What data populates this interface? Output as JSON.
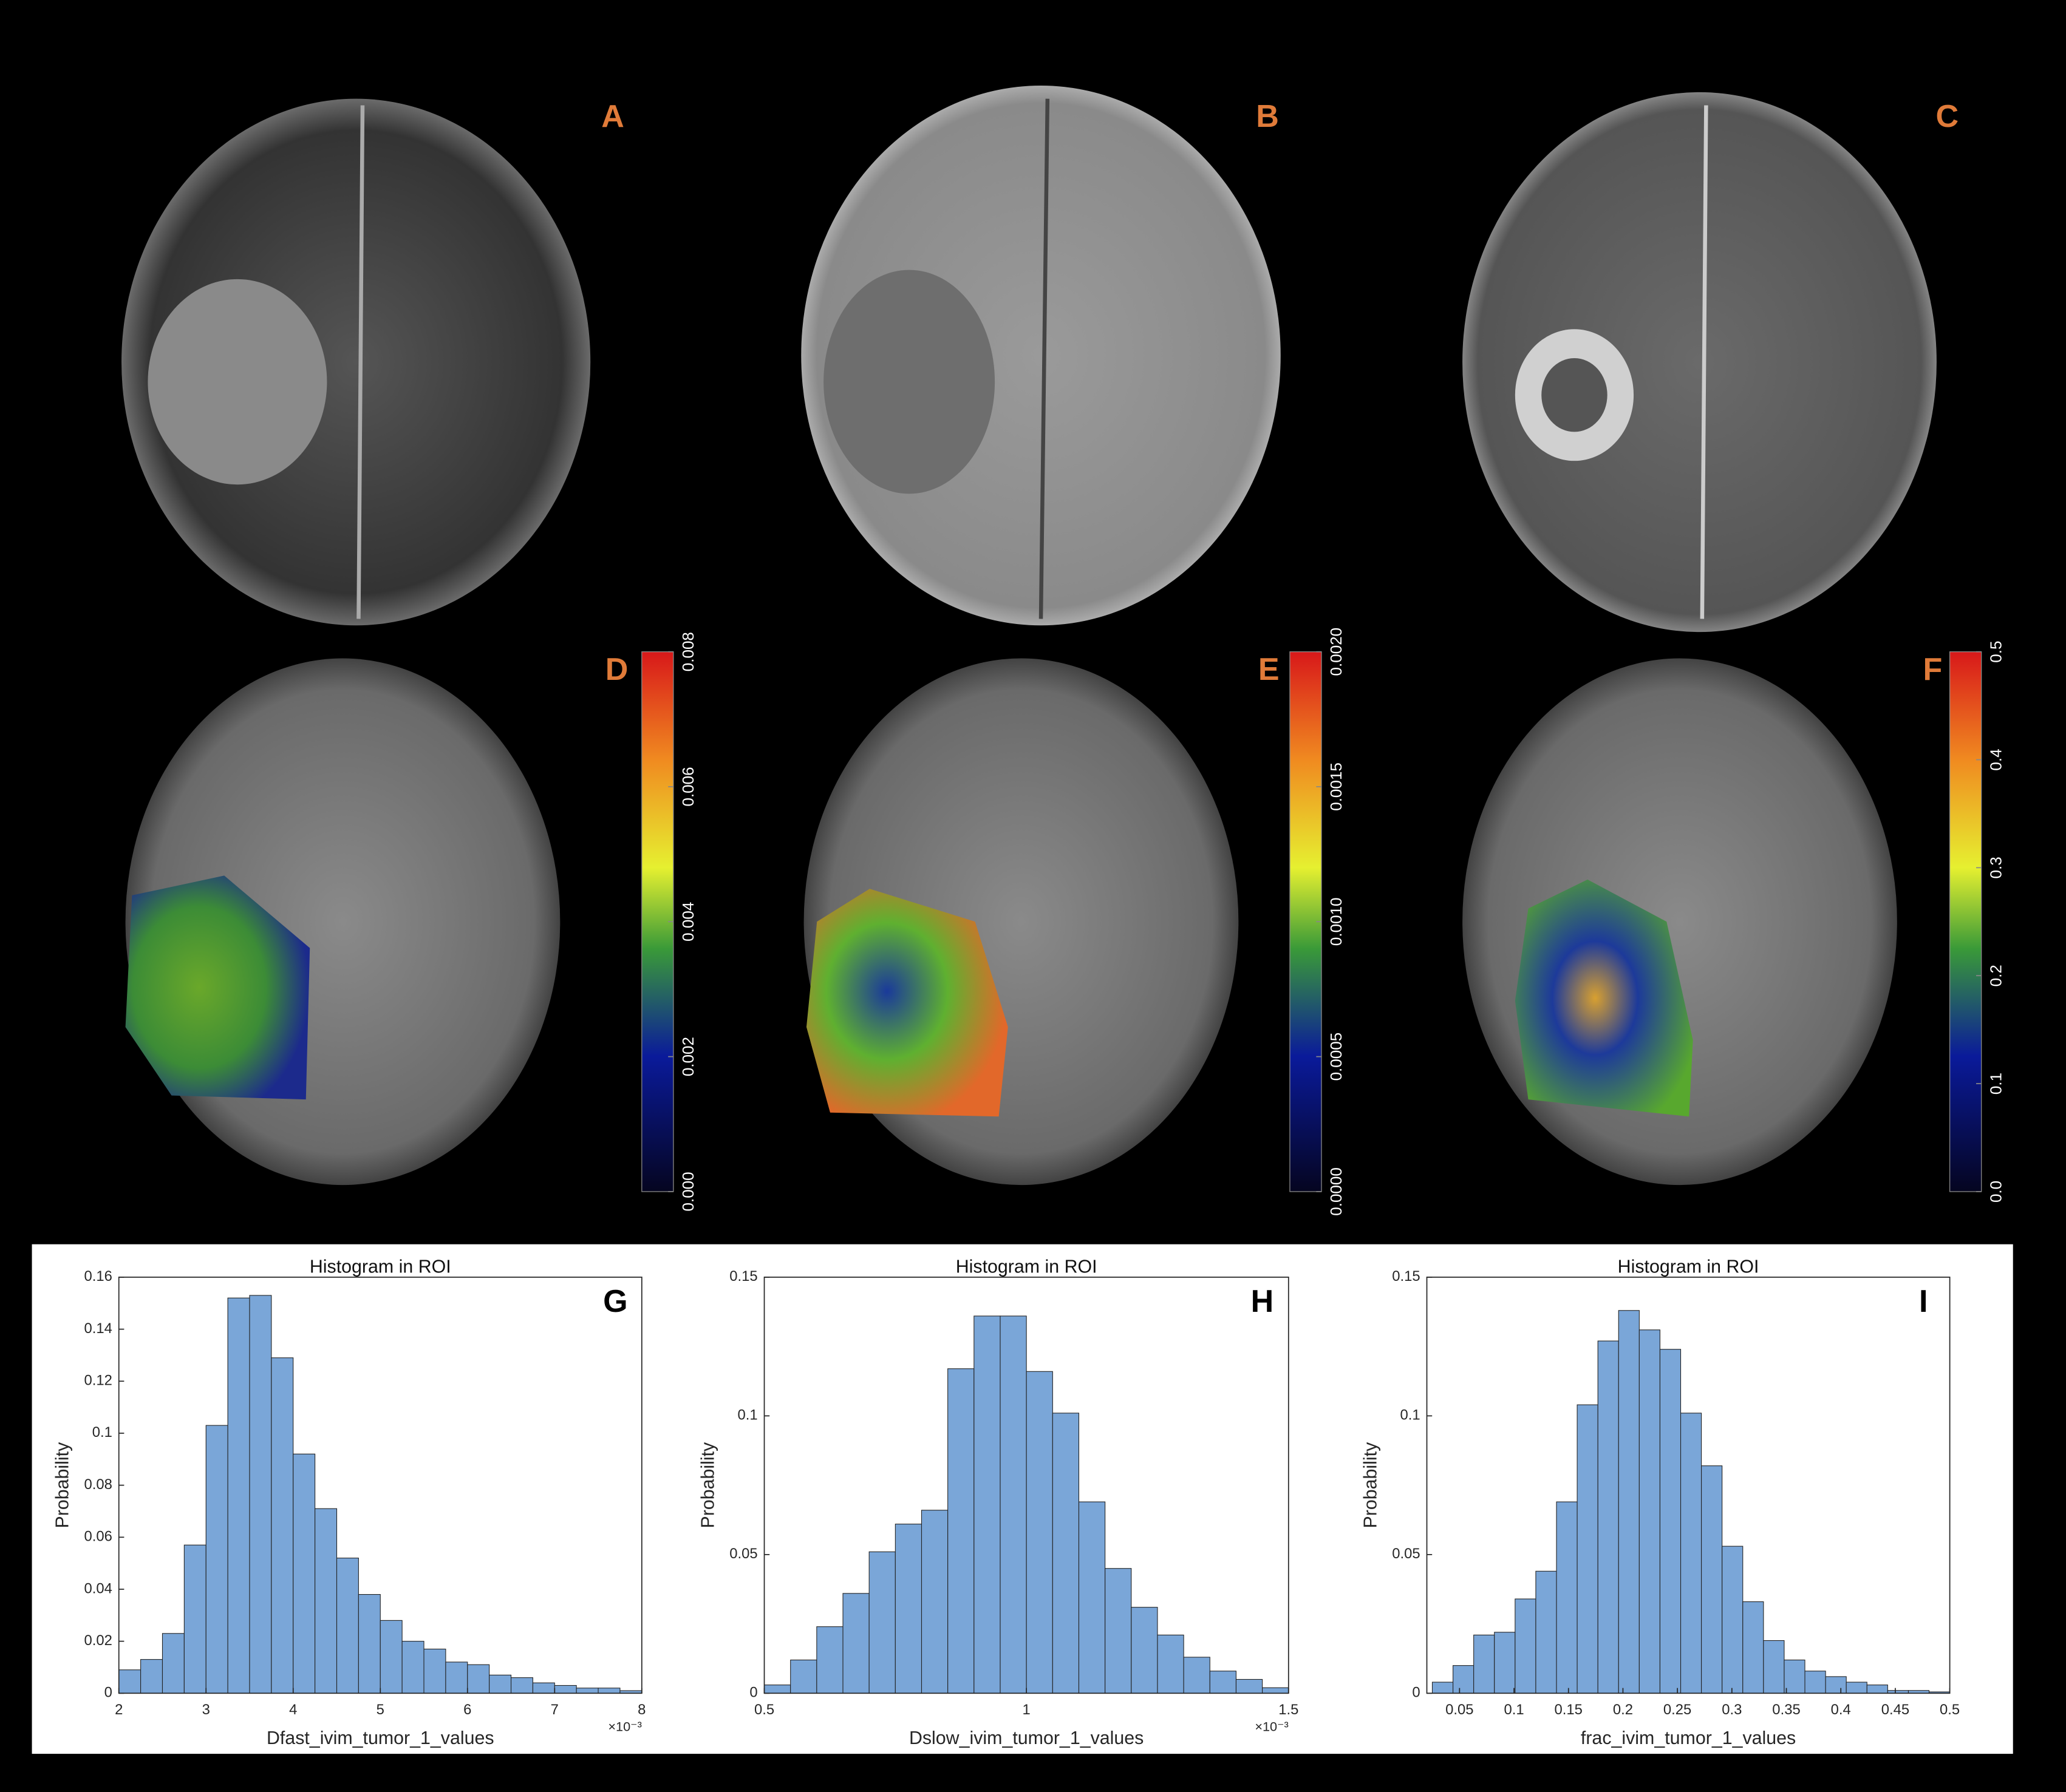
{
  "panels": [
    "A",
    "B",
    "C",
    "D",
    "E",
    "F"
  ],
  "colorbars": [
    {
      "lim": [
        0,
        0.008
      ],
      "ticks": [
        {
          "value": 0,
          "label": "0.000"
        },
        {
          "value": 0.002,
          "label": "0.002"
        },
        {
          "value": 0.004,
          "label": "0.004"
        },
        {
          "value": 0.006,
          "label": "0.006"
        },
        {
          "value": 0.008,
          "label": "0.008"
        }
      ]
    },
    {
      "lim": [
        0,
        0.002
      ],
      "ticks": [
        {
          "value": 0,
          "label": "0.0000"
        },
        {
          "value": 0.0005,
          "label": "0.0005"
        },
        {
          "value": 0.001,
          "label": "0.0010"
        },
        {
          "value": 0.0015,
          "label": "0.0015"
        },
        {
          "value": 0.002,
          "label": "0.0020"
        }
      ]
    },
    {
      "lim": [
        0,
        0.5
      ],
      "ticks": [
        {
          "value": 0,
          "label": "0.0"
        },
        0.1,
        0.2,
        0.3,
        0.4,
        0.5
      ]
    }
  ],
  "chart_data": [
    {
      "type": "histogram",
      "panel": "G",
      "title": "Histogram in ROI",
      "xlabel": "Dfast_ivim_tumor_1_values",
      "ylabel": "Probability",
      "x_multiplier": "×10⁻³",
      "color": "#7aa6d8",
      "bins": [
        2,
        2.25,
        2.5,
        2.75,
        3,
        3.25,
        3.5,
        3.75,
        4,
        4.25,
        4.5,
        4.75,
        5,
        5.25,
        5.5,
        5.75,
        6,
        6.25,
        6.5,
        6.75,
        7,
        7.25,
        7.5,
        7.75,
        8
      ],
      "values": [
        0.009,
        0.013,
        0.023,
        0.057,
        0.103,
        0.152,
        0.153,
        0.129,
        0.092,
        0.071,
        0.052,
        0.038,
        0.028,
        0.02,
        0.017,
        0.012,
        0.011,
        0.007,
        0.006,
        0.004,
        0.003,
        0.002,
        0.002,
        0.001
      ],
      "xlim": [
        2,
        8
      ],
      "xticks": [
        2,
        3,
        4,
        5,
        6,
        7,
        8
      ],
      "ylim": [
        0,
        0.16
      ],
      "yticks": [
        0,
        0.02,
        0.04,
        0.06,
        0.08,
        0.1,
        0.12,
        0.14,
        0.16
      ]
    },
    {
      "type": "histogram",
      "panel": "H",
      "title": "Histogram in ROI",
      "xlabel": "Dslow_ivim_tumor_1_values",
      "ylabel": "Probability",
      "x_multiplier": "×10⁻³",
      "color": "#7aa6d8",
      "bins": [
        0.5,
        0.55,
        0.6,
        0.65,
        0.7,
        0.75,
        0.8,
        0.85,
        0.9,
        0.95,
        1,
        1.05,
        1.1,
        1.15,
        1.2,
        1.25,
        1.3,
        1.35,
        1.4,
        1.45,
        1.5
      ],
      "values": [
        0.003,
        0.012,
        0.024,
        0.036,
        0.051,
        0.061,
        0.066,
        0.117,
        0.136,
        0.136,
        0.116,
        0.101,
        0.069,
        0.045,
        0.031,
        0.021,
        0.013,
        0.008,
        0.005,
        0.002
      ],
      "xlim": [
        0.5,
        1.5
      ],
      "xticks": [
        0.5,
        1,
        1.5
      ],
      "ylim": [
        0,
        0.15
      ],
      "yticks": [
        0,
        0.05,
        0.1,
        0.15
      ]
    },
    {
      "type": "histogram",
      "panel": "I",
      "title": "Histogram in ROI",
      "xlabel": "frac_ivim_tumor_1_values",
      "ylabel": "Probability",
      "color": "#7aa6d8",
      "bins": [
        0.025,
        0.044,
        0.063,
        0.082,
        0.101,
        0.12,
        0.139,
        0.158,
        0.177,
        0.196,
        0.215,
        0.234,
        0.253,
        0.272,
        0.291,
        0.31,
        0.329,
        0.348,
        0.367,
        0.386,
        0.405,
        0.424,
        0.443,
        0.462,
        0.481,
        0.5
      ],
      "values": [
        0.004,
        0.01,
        0.021,
        0.022,
        0.034,
        0.044,
        0.069,
        0.104,
        0.127,
        0.138,
        0.131,
        0.124,
        0.101,
        0.082,
        0.053,
        0.033,
        0.019,
        0.012,
        0.008,
        0.006,
        0.004,
        0.003,
        0.001,
        0.001,
        0.0005
      ],
      "xlim": [
        0.02,
        0.5
      ],
      "xticks": [
        0.05,
        0.1,
        0.15,
        0.2,
        0.25,
        0.3,
        0.35,
        0.4,
        0.45,
        0.5
      ],
      "ylim": [
        0,
        0.15
      ],
      "yticks": [
        0,
        0.05,
        0.1,
        0.15
      ]
    }
  ]
}
